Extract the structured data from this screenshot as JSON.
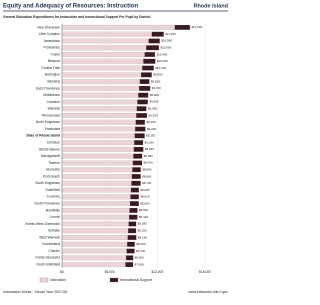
{
  "chart_data": {
    "type": "bar",
    "orientation": "horizontal",
    "title": "Equity and Adequacy of Resources: Instruction",
    "state": "Rhode Island",
    "subtitle": "General Education Expenditures for Instruction and Instructional Support Per Pupil by District",
    "categories": [
      "New Shoreham",
      "Little Compton",
      "Jamestown",
      "Providence",
      "Foster",
      "Newport",
      "Central Falls",
      "Barrington",
      "Westerly",
      "East Providence",
      "Middletown",
      "Cranston",
      "Warwick",
      "Woonsocket",
      "North Kingstown",
      "Pawtucket",
      "State of Rhode Island",
      "Johnston",
      "Bristol Warren",
      "Narragansett",
      "Tiverton",
      "Glocester",
      "Portsmouth",
      "South Kingstown",
      "Smithfield",
      "Coventry",
      "North Providence",
      "Burrillville",
      "Lincoln",
      "Exeter-West Greenwich",
      "Scituate",
      "West Warwick",
      "Cumberland",
      "Chariho",
      "Foster-Glocester",
      "North Smithfield"
    ],
    "highlight_index": 16,
    "series": [
      {
        "name": "Instruction",
        "color": "#ecd3d6",
        "values": [
          14200,
          11300,
          10900,
          10600,
          10400,
          10250,
          10100,
          9950,
          9800,
          9700,
          9600,
          9500,
          9420,
          9350,
          9280,
          9200,
          9150,
          9100,
          9040,
          8980,
          8920,
          8860,
          8800,
          8740,
          8680,
          8620,
          8560,
          8500,
          8440,
          8380,
          8320,
          8260,
          8200,
          8130,
          8060,
          7990
        ],
        "value_labels": [
          "$14,200",
          "$11,300",
          "$10,900",
          "$10,600",
          "$10,400",
          "$10,250",
          "$10,100",
          "$9,950",
          "$9,800",
          "$9,700",
          "$9,600",
          "$9,500",
          "$9,420",
          "$9,350",
          "$9,280",
          "$9,200",
          "$9,150",
          "$9,100",
          "$9,040",
          "$8,980",
          "$8,920",
          "$8,860",
          "$8,800",
          "$8,740",
          "$8,680",
          "$8,620",
          "$8,560",
          "$8,500",
          "$8,440",
          "$8,380",
          "$8,320",
          "$8,260",
          "$8,200",
          "$8,130",
          "$8,060",
          "$7,990"
        ]
      },
      {
        "name": "Instructional Support",
        "color": "#3a1a20",
        "values": [
          1900,
          1500,
          1400,
          1600,
          1300,
          1500,
          1450,
          1350,
          1200,
          1400,
          1250,
          1300,
          1200,
          1350,
          1150,
          1300,
          1250,
          1100,
          1200,
          1100,
          1150,
          1050,
          1100,
          1150,
          1000,
          1050,
          1100,
          1000,
          1050,
          950,
          1000,
          1100,
          950,
          1000,
          900,
          950
        ]
      }
    ],
    "xlim": [
      0,
      18000
    ],
    "xticks": [
      {
        "value": 0,
        "label": "$0"
      },
      {
        "value": 6000,
        "label": "$6,000"
      },
      {
        "value": 12000,
        "label": "$12,000"
      },
      {
        "value": 18000,
        "label": "$18,000"
      }
    ],
    "grid": true,
    "footer_left": "Information Works · School Year 2007-08",
    "footer_right": "www.infoworks.ride.ri.gov"
  }
}
